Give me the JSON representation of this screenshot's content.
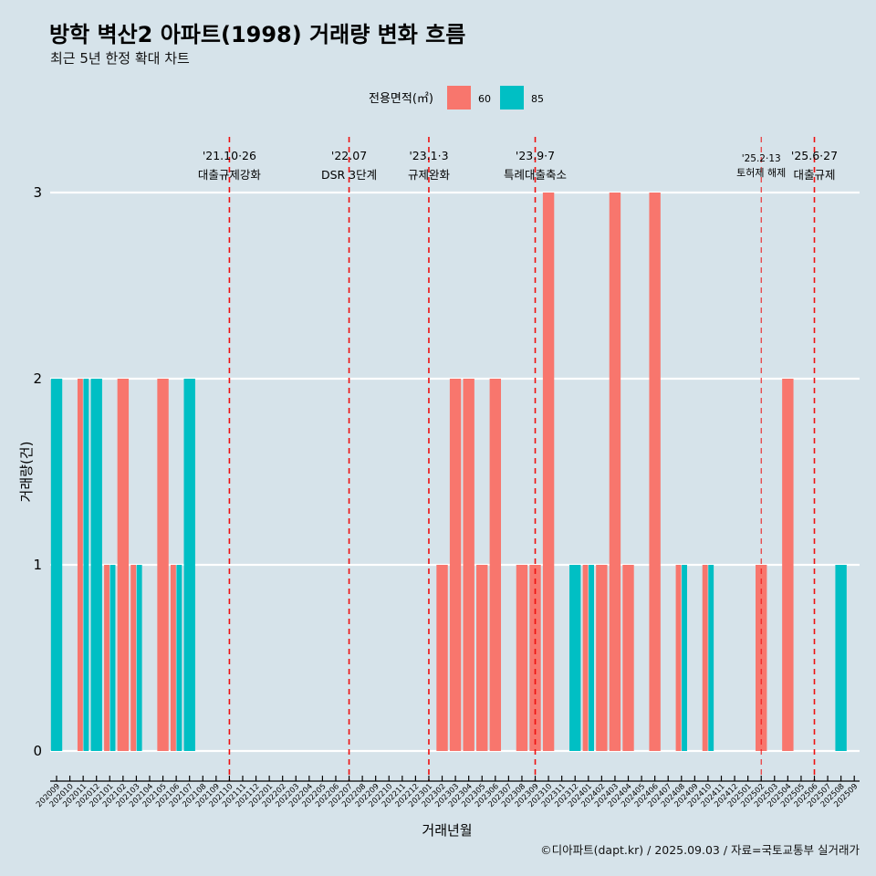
{
  "title": "방학 벽산2 아파트(1998) 거래량 변화 흐름",
  "subtitle": "최근 5년 한정 확대 차트",
  "caption": "©디아파트(dapt.kr) / 2025.09.03 / 자료=국토교통부 실거래가",
  "chart_data": {
    "type": "bar",
    "xlabel": "거래년월",
    "ylabel": "거래량(건)",
    "ylim": [
      0,
      3
    ],
    "yticks": [
      "0",
      "1",
      "2",
      "3"
    ],
    "legend": {
      "title": "전용면적(㎡)",
      "position": "top"
    },
    "colors": {
      "60": "#f8766d",
      "85": "#00bfc4",
      "event_line": "#ee1111"
    },
    "categories": [
      "202009",
      "202010",
      "202011",
      "202012",
      "202101",
      "202102",
      "202103",
      "202104",
      "202105",
      "202106",
      "202107",
      "202108",
      "202109",
      "202110",
      "202111",
      "202112",
      "202201",
      "202202",
      "202203",
      "202204",
      "202205",
      "202206",
      "202207",
      "202208",
      "202209",
      "202210",
      "202211",
      "202212",
      "202301",
      "202302",
      "202303",
      "202304",
      "202305",
      "202306",
      "202307",
      "202308",
      "202309",
      "202310",
      "202311",
      "202312",
      "202401",
      "202402",
      "202403",
      "202404",
      "202405",
      "202406",
      "202407",
      "202408",
      "202409",
      "202410",
      "202411",
      "202412",
      "202501",
      "202502",
      "202503",
      "202504",
      "202505",
      "202506",
      "202507",
      "202508",
      "202509"
    ],
    "series": [
      {
        "name": "60",
        "values": [
          0,
          0,
          2,
          0,
          1,
          2,
          1,
          0,
          2,
          1,
          0,
          0,
          0,
          0,
          0,
          0,
          0,
          0,
          0,
          0,
          0,
          0,
          0,
          0,
          0,
          0,
          0,
          0,
          0,
          1,
          2,
          2,
          1,
          2,
          0,
          1,
          1,
          3,
          0,
          0,
          1,
          1,
          3,
          1,
          0,
          3,
          0,
          1,
          0,
          1,
          0,
          0,
          0,
          1,
          0,
          2,
          0,
          0,
          0,
          0,
          0
        ]
      },
      {
        "name": "85",
        "values": [
          2,
          0,
          2,
          2,
          1,
          0,
          1,
          0,
          0,
          1,
          2,
          0,
          0,
          0,
          0,
          0,
          0,
          0,
          0,
          0,
          0,
          0,
          0,
          0,
          0,
          0,
          0,
          0,
          0,
          0,
          0,
          0,
          0,
          0,
          0,
          0,
          0,
          0,
          0,
          1,
          1,
          0,
          0,
          0,
          0,
          0,
          0,
          1,
          0,
          1,
          0,
          0,
          0,
          0,
          0,
          0,
          0,
          0,
          0,
          1,
          0
        ]
      }
    ],
    "events": [
      {
        "month": "202110",
        "date": "'21.10·26",
        "label": "대출규제강화"
      },
      {
        "month": "202207",
        "date": "'22.07",
        "label": "DSR 3단계"
      },
      {
        "month": "202301",
        "date": "'23.1·3",
        "label": "규제완화"
      },
      {
        "month": "202309",
        "date": "'23.9·7",
        "label": "특례대출축소"
      },
      {
        "month": "202502",
        "date": "'25.2·13",
        "label": "토허제 해제",
        "minor": true
      },
      {
        "month": "202506",
        "date": "'25.6·27",
        "label": "대출규제"
      }
    ]
  }
}
